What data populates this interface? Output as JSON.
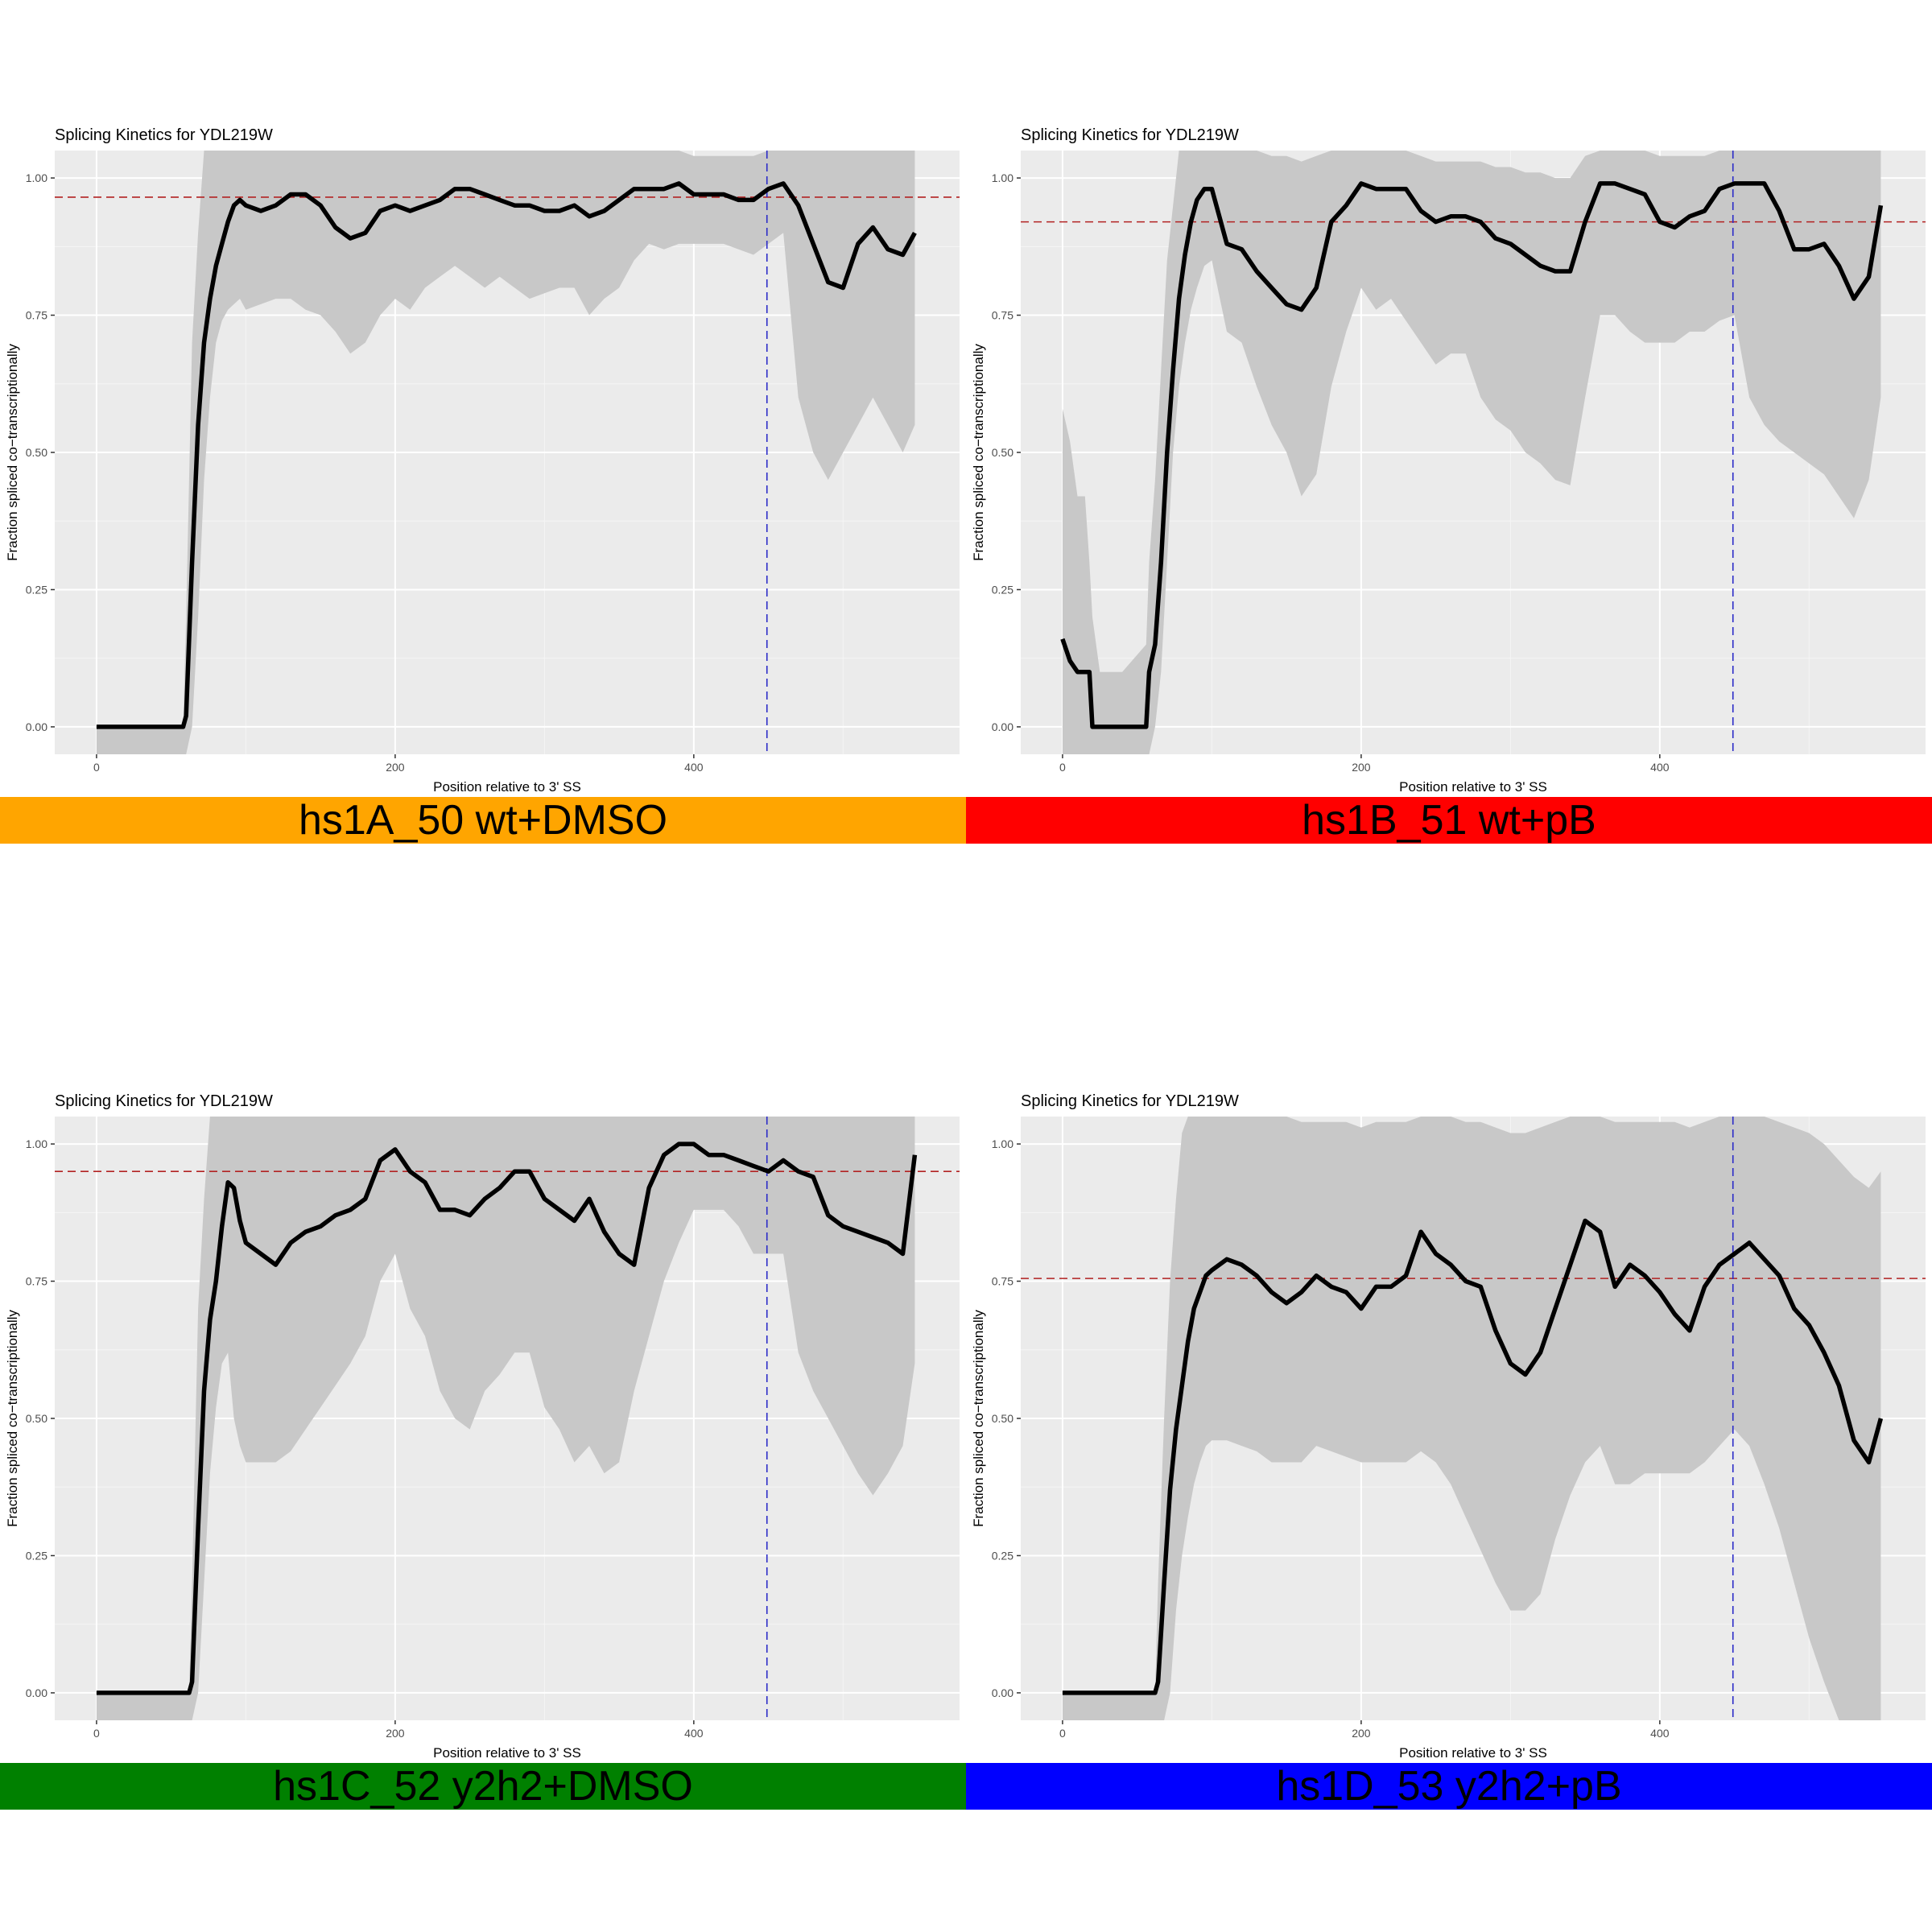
{
  "chart_data": [
    {
      "type": "line",
      "title": "Splicing Kinetics for YDL219W",
      "xlabel": "Position relative to 3' SS",
      "ylabel": "Fraction spliced co−transcriptionally",
      "xlim": [
        -28,
        578
      ],
      "ylim": [
        -0.05,
        1.05
      ],
      "x_ticks": [
        0,
        200,
        400
      ],
      "y_ticks": [
        "0.00",
        "0.25",
        "0.50",
        "0.75",
        "1.00"
      ],
      "grid": true,
      "hline": 0.965,
      "vline": 449,
      "banner": {
        "label": "hs1A_50 wt+DMSO",
        "color": "#FFA500"
      },
      "series": [
        {
          "x": [
            0,
            58,
            60,
            64,
            68,
            72,
            76,
            80,
            84,
            88,
            92,
            96,
            100,
            110,
            120,
            130,
            140,
            150,
            160,
            170,
            180,
            190,
            200,
            210,
            220,
            230,
            240,
            250,
            260,
            270,
            280,
            290,
            300,
            310,
            320,
            330,
            340,
            350,
            360,
            370,
            380,
            390,
            400,
            410,
            420,
            430,
            440,
            450,
            460,
            470,
            480,
            490,
            500,
            510,
            520,
            530,
            540,
            548
          ],
          "y": [
            0,
            0,
            0.02,
            0.3,
            0.55,
            0.7,
            0.78,
            0.84,
            0.88,
            0.92,
            0.95,
            0.96,
            0.95,
            0.94,
            0.95,
            0.97,
            0.97,
            0.95,
            0.91,
            0.89,
            0.9,
            0.94,
            0.95,
            0.94,
            0.95,
            0.96,
            0.98,
            0.98,
            0.97,
            0.96,
            0.95,
            0.95,
            0.94,
            0.94,
            0.95,
            0.93,
            0.94,
            0.96,
            0.98,
            0.98,
            0.98,
            0.99,
            0.97,
            0.97,
            0.97,
            0.96,
            0.96,
            0.98,
            0.99,
            0.95,
            0.88,
            0.81,
            0.8,
            0.88,
            0.91,
            0.87,
            0.86,
            0.9
          ],
          "lower": [
            -0.05,
            -0.05,
            -0.05,
            0.0,
            0.2,
            0.45,
            0.6,
            0.7,
            0.74,
            0.76,
            0.77,
            0.78,
            0.76,
            0.77,
            0.78,
            0.78,
            0.76,
            0.75,
            0.72,
            0.68,
            0.7,
            0.75,
            0.78,
            0.76,
            0.8,
            0.82,
            0.84,
            0.82,
            0.8,
            0.82,
            0.8,
            0.78,
            0.79,
            0.8,
            0.8,
            0.75,
            0.78,
            0.8,
            0.85,
            0.88,
            0.87,
            0.88,
            0.88,
            0.88,
            0.88,
            0.87,
            0.86,
            0.88,
            0.9,
            0.6,
            0.5,
            0.45,
            0.5,
            0.55,
            0.6,
            0.55,
            0.5,
            0.55
          ],
          "upper": [
            0,
            0,
            0.2,
            0.7,
            0.9,
            1.05,
            1.05,
            1.05,
            1.05,
            1.05,
            1.05,
            1.05,
            1.05,
            1.05,
            1.05,
            1.05,
            1.05,
            1.05,
            1.05,
            1.05,
            1.05,
            1.05,
            1.05,
            1.05,
            1.05,
            1.05,
            1.05,
            1.05,
            1.05,
            1.05,
            1.05,
            1.05,
            1.05,
            1.05,
            1.05,
            1.05,
            1.05,
            1.05,
            1.05,
            1.05,
            1.05,
            1.05,
            1.04,
            1.04,
            1.04,
            1.04,
            1.04,
            1.05,
            1.05,
            1.05,
            1.05,
            1.05,
            1.05,
            1.05,
            1.05,
            1.05,
            1.05,
            1.05
          ]
        }
      ]
    },
    {
      "type": "line",
      "title": "Splicing Kinetics for YDL219W",
      "xlabel": "Position relative to 3' SS",
      "ylabel": "Fraction spliced co−transcriptionally",
      "xlim": [
        -28,
        578
      ],
      "ylim": [
        -0.05,
        1.05
      ],
      "x_ticks": [
        0,
        200,
        400
      ],
      "y_ticks": [
        "0.00",
        "0.25",
        "0.50",
        "0.75",
        "1.00"
      ],
      "grid": true,
      "hline": 0.92,
      "vline": 449,
      "banner": {
        "label": "hs1B_51 wt+pB",
        "color": "#FF0000"
      },
      "series": [
        {
          "x": [
            0,
            5,
            10,
            15,
            18,
            20,
            25,
            40,
            56,
            58,
            62,
            66,
            70,
            74,
            78,
            82,
            86,
            90,
            95,
            100,
            110,
            120,
            130,
            140,
            150,
            160,
            170,
            180,
            190,
            200,
            210,
            220,
            230,
            240,
            250,
            260,
            270,
            280,
            290,
            300,
            310,
            320,
            330,
            340,
            350,
            360,
            370,
            380,
            390,
            400,
            410,
            420,
            430,
            440,
            450,
            460,
            470,
            480,
            490,
            500,
            510,
            520,
            530,
            540,
            548
          ],
          "y": [
            0.16,
            0.12,
            0.1,
            0.1,
            0.1,
            0.0,
            0.0,
            0.0,
            0.0,
            0.1,
            0.15,
            0.3,
            0.5,
            0.65,
            0.78,
            0.86,
            0.92,
            0.96,
            0.98,
            0.98,
            0.88,
            0.87,
            0.83,
            0.8,
            0.77,
            0.76,
            0.8,
            0.92,
            0.95,
            0.99,
            0.98,
            0.98,
            0.98,
            0.94,
            0.92,
            0.93,
            0.93,
            0.92,
            0.89,
            0.88,
            0.86,
            0.84,
            0.83,
            0.83,
            0.92,
            0.99,
            0.99,
            0.98,
            0.97,
            0.92,
            0.91,
            0.93,
            0.94,
            0.98,
            0.99,
            0.99,
            0.99,
            0.94,
            0.87,
            0.87,
            0.88,
            0.84,
            0.78,
            0.82,
            0.95
          ],
          "lower": [
            -0.05,
            -0.05,
            -0.05,
            -0.05,
            -0.05,
            -0.05,
            -0.05,
            -0.05,
            -0.05,
            -0.05,
            0.0,
            0.1,
            0.3,
            0.5,
            0.62,
            0.7,
            0.76,
            0.8,
            0.84,
            0.85,
            0.72,
            0.7,
            0.62,
            0.55,
            0.5,
            0.42,
            0.46,
            0.62,
            0.72,
            0.8,
            0.76,
            0.78,
            0.74,
            0.7,
            0.66,
            0.68,
            0.68,
            0.6,
            0.56,
            0.54,
            0.5,
            0.48,
            0.45,
            0.44,
            0.6,
            0.75,
            0.75,
            0.72,
            0.7,
            0.7,
            0.7,
            0.72,
            0.72,
            0.74,
            0.75,
            0.6,
            0.55,
            0.52,
            0.5,
            0.48,
            0.46,
            0.42,
            0.38,
            0.45,
            0.6
          ],
          "upper": [
            0.58,
            0.52,
            0.42,
            0.42,
            0.3,
            0.2,
            0.1,
            0.1,
            0.15,
            0.3,
            0.45,
            0.65,
            0.85,
            0.95,
            1.05,
            1.05,
            1.05,
            1.05,
            1.05,
            1.05,
            1.05,
            1.05,
            1.05,
            1.04,
            1.04,
            1.03,
            1.04,
            1.05,
            1.05,
            1.05,
            1.05,
            1.05,
            1.05,
            1.04,
            1.03,
            1.03,
            1.03,
            1.03,
            1.02,
            1.02,
            1.01,
            1.01,
            1.0,
            1.0,
            1.04,
            1.05,
            1.05,
            1.05,
            1.05,
            1.04,
            1.04,
            1.04,
            1.04,
            1.05,
            1.05,
            1.05,
            1.05,
            1.05,
            1.05,
            1.05,
            1.05,
            1.05,
            1.05,
            1.05,
            1.05
          ]
        }
      ]
    },
    {
      "type": "line",
      "title": "Splicing Kinetics for YDL219W",
      "xlabel": "Position relative to 3' SS",
      "ylabel": "Fraction spliced co−transcriptionally",
      "xlim": [
        -28,
        578
      ],
      "ylim": [
        -0.05,
        1.05
      ],
      "x_ticks": [
        0,
        200,
        400
      ],
      "y_ticks": [
        "0.00",
        "0.25",
        "0.50",
        "0.75",
        "1.00"
      ],
      "grid": true,
      "hline": 0.95,
      "vline": 449,
      "banner": {
        "label": "hs1C_52 y2h2+DMSO",
        "color": "#008000"
      },
      "series": [
        {
          "x": [
            0,
            62,
            64,
            68,
            72,
            76,
            80,
            84,
            88,
            92,
            96,
            100,
            110,
            120,
            130,
            140,
            150,
            160,
            170,
            180,
            190,
            200,
            210,
            220,
            230,
            240,
            250,
            260,
            270,
            280,
            290,
            300,
            310,
            320,
            330,
            340,
            350,
            360,
            370,
            380,
            390,
            400,
            410,
            420,
            430,
            440,
            450,
            460,
            470,
            480,
            490,
            500,
            510,
            520,
            530,
            540,
            548
          ],
          "y": [
            0,
            0,
            0.02,
            0.3,
            0.55,
            0.68,
            0.75,
            0.85,
            0.93,
            0.92,
            0.86,
            0.82,
            0.8,
            0.78,
            0.82,
            0.84,
            0.85,
            0.87,
            0.88,
            0.9,
            0.97,
            0.99,
            0.95,
            0.93,
            0.88,
            0.88,
            0.87,
            0.9,
            0.92,
            0.95,
            0.95,
            0.9,
            0.88,
            0.86,
            0.9,
            0.84,
            0.8,
            0.78,
            0.92,
            0.98,
            1.0,
            1.0,
            0.98,
            0.98,
            0.97,
            0.96,
            0.95,
            0.97,
            0.95,
            0.94,
            0.87,
            0.85,
            0.84,
            0.83,
            0.82,
            0.8,
            0.98
          ],
          "lower": [
            -0.05,
            -0.05,
            -0.05,
            0.0,
            0.2,
            0.4,
            0.52,
            0.6,
            0.62,
            0.5,
            0.45,
            0.42,
            0.42,
            0.42,
            0.44,
            0.48,
            0.52,
            0.56,
            0.6,
            0.65,
            0.75,
            0.8,
            0.7,
            0.65,
            0.55,
            0.5,
            0.48,
            0.55,
            0.58,
            0.62,
            0.62,
            0.52,
            0.48,
            0.42,
            0.45,
            0.4,
            0.42,
            0.55,
            0.65,
            0.75,
            0.82,
            0.88,
            0.88,
            0.88,
            0.85,
            0.8,
            0.8,
            0.8,
            0.62,
            0.55,
            0.5,
            0.45,
            0.4,
            0.36,
            0.4,
            0.45,
            0.6
          ],
          "upper": [
            0,
            0,
            0.2,
            0.7,
            0.9,
            1.05,
            1.05,
            1.05,
            1.05,
            1.05,
            1.05,
            1.05,
            1.05,
            1.05,
            1.05,
            1.05,
            1.05,
            1.05,
            1.05,
            1.05,
            1.05,
            1.05,
            1.05,
            1.05,
            1.05,
            1.05,
            1.05,
            1.05,
            1.05,
            1.05,
            1.05,
            1.05,
            1.05,
            1.05,
            1.05,
            1.05,
            1.05,
            1.05,
            1.05,
            1.05,
            1.05,
            1.05,
            1.05,
            1.05,
            1.05,
            1.05,
            1.05,
            1.05,
            1.05,
            1.05,
            1.05,
            1.05,
            1.05,
            1.05,
            1.05,
            1.05,
            1.05
          ]
        }
      ]
    },
    {
      "type": "line",
      "title": "Splicing Kinetics for YDL219W",
      "xlabel": "Position relative to 3' SS",
      "ylabel": "Fraction spliced co−transcriptionally",
      "xlim": [
        -28,
        578
      ],
      "ylim": [
        -0.05,
        1.05
      ],
      "x_ticks": [
        0,
        200,
        400
      ],
      "y_ticks": [
        "0.00",
        "0.25",
        "0.50",
        "0.75",
        "1.00"
      ],
      "grid": true,
      "hline": 0.755,
      "vline": 449,
      "banner": {
        "label": "hs1D_53 y2h2+pB",
        "color": "#0000FF"
      },
      "series": [
        {
          "x": [
            0,
            62,
            64,
            68,
            72,
            76,
            80,
            84,
            88,
            92,
            96,
            100,
            110,
            120,
            130,
            140,
            150,
            160,
            170,
            180,
            190,
            200,
            210,
            220,
            230,
            240,
            250,
            260,
            270,
            280,
            290,
            300,
            310,
            320,
            330,
            340,
            350,
            360,
            370,
            380,
            390,
            400,
            410,
            420,
            430,
            440,
            450,
            460,
            470,
            480,
            490,
            500,
            510,
            520,
            530,
            540,
            548
          ],
          "y": [
            0,
            0,
            0.02,
            0.2,
            0.37,
            0.48,
            0.56,
            0.64,
            0.7,
            0.73,
            0.76,
            0.77,
            0.79,
            0.78,
            0.76,
            0.73,
            0.71,
            0.73,
            0.76,
            0.74,
            0.73,
            0.7,
            0.74,
            0.74,
            0.76,
            0.84,
            0.8,
            0.78,
            0.75,
            0.74,
            0.66,
            0.6,
            0.58,
            0.62,
            0.7,
            0.78,
            0.86,
            0.84,
            0.74,
            0.78,
            0.76,
            0.73,
            0.69,
            0.66,
            0.74,
            0.78,
            0.8,
            0.82,
            0.79,
            0.76,
            0.7,
            0.67,
            0.62,
            0.56,
            0.46,
            0.42,
            0.5
          ],
          "lower": [
            -0.05,
            -0.05,
            -0.05,
            -0.05,
            0.0,
            0.15,
            0.25,
            0.32,
            0.38,
            0.42,
            0.45,
            0.46,
            0.46,
            0.45,
            0.44,
            0.42,
            0.42,
            0.42,
            0.45,
            0.44,
            0.43,
            0.42,
            0.42,
            0.42,
            0.42,
            0.44,
            0.42,
            0.38,
            0.32,
            0.26,
            0.2,
            0.15,
            0.15,
            0.18,
            0.28,
            0.36,
            0.42,
            0.45,
            0.38,
            0.38,
            0.4,
            0.4,
            0.4,
            0.4,
            0.42,
            0.45,
            0.48,
            0.45,
            0.38,
            0.3,
            0.2,
            0.1,
            0.02,
            -0.05,
            -0.05,
            -0.05,
            -0.05
          ],
          "upper": [
            0,
            0,
            0.2,
            0.5,
            0.75,
            0.9,
            1.02,
            1.05,
            1.05,
            1.05,
            1.05,
            1.05,
            1.05,
            1.05,
            1.05,
            1.05,
            1.05,
            1.04,
            1.04,
            1.04,
            1.04,
            1.03,
            1.04,
            1.04,
            1.04,
            1.05,
            1.05,
            1.05,
            1.04,
            1.04,
            1.03,
            1.02,
            1.02,
            1.03,
            1.04,
            1.05,
            1.05,
            1.05,
            1.04,
            1.04,
            1.04,
            1.04,
            1.04,
            1.03,
            1.04,
            1.05,
            1.05,
            1.05,
            1.05,
            1.04,
            1.03,
            1.02,
            1.0,
            0.97,
            0.94,
            0.92,
            0.95
          ]
        }
      ]
    }
  ]
}
